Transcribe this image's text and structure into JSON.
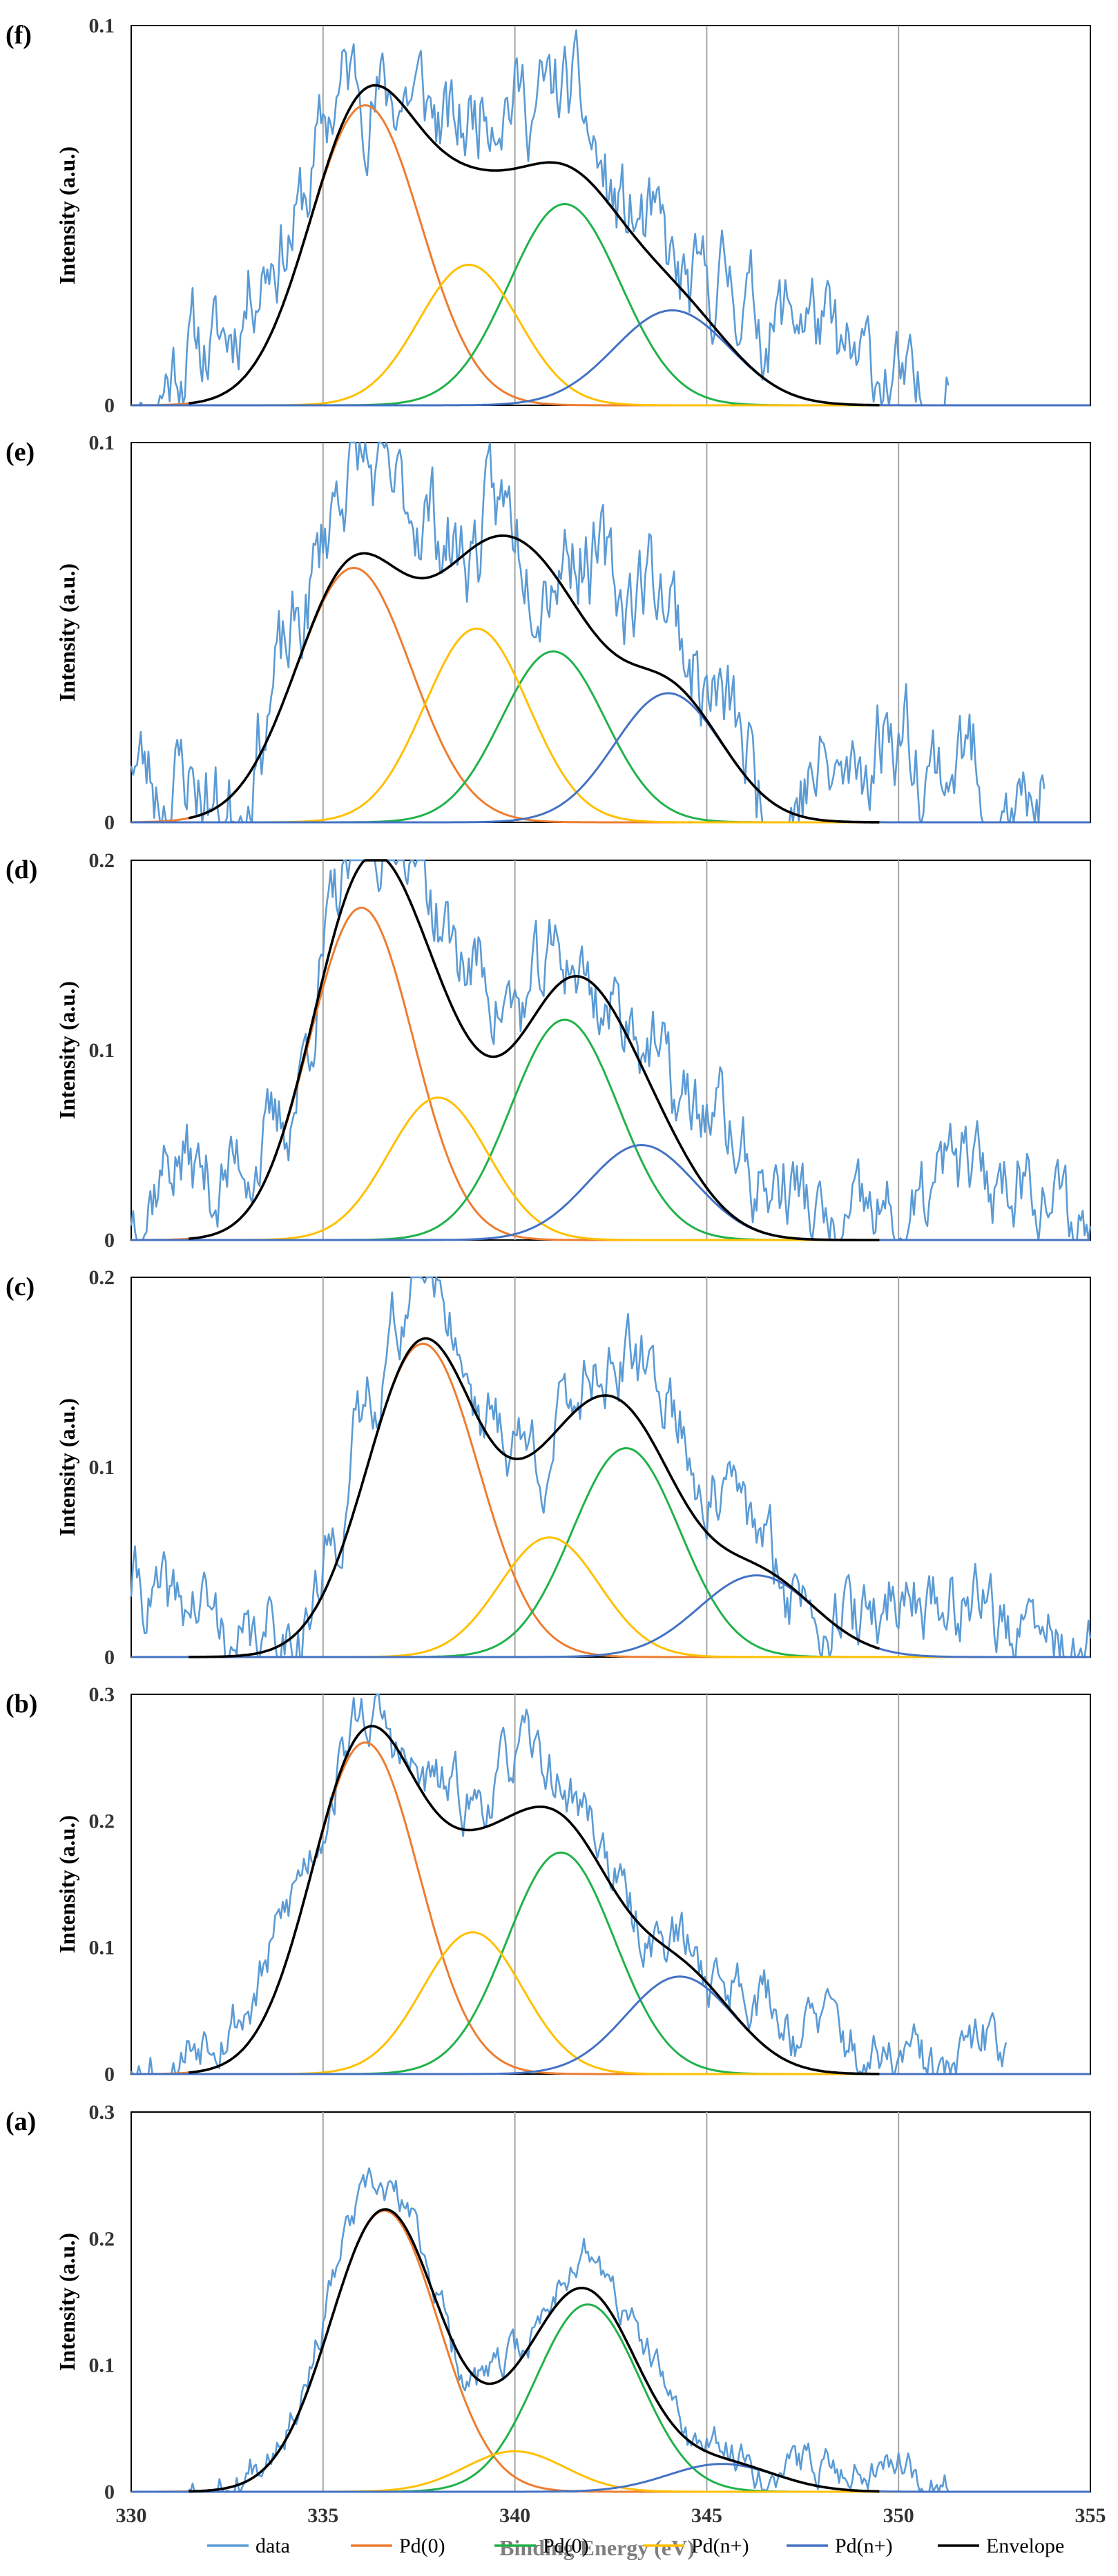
{
  "chart_data": {
    "type": "line",
    "xlabel": "Binding Energy (eV)",
    "xlim": [
      330,
      355
    ],
    "xticks": [
      "330",
      "335",
      "340",
      "345",
      "350",
      "355"
    ],
    "gridlines_x": [
      335,
      340,
      345,
      350
    ],
    "legend": [
      {
        "name": "data",
        "color": "#5b9bd5"
      },
      {
        "name": "Pd(0)",
        "color": "#ed7d31"
      },
      {
        "name": "Pd(0)",
        "color": "#21b24b"
      },
      {
        "name": "Pd(n+)",
        "color": "#ffc000"
      },
      {
        "name": "Pd(n+)",
        "color": "#4472c4"
      },
      {
        "name": "Envelope",
        "color": "#000000"
      }
    ],
    "panels": [
      {
        "label": "(f)",
        "ylabel": "Intensity (a.u.)",
        "ylim": [
          0,
          0.1
        ],
        "yticks": [
          "0",
          "0.1"
        ],
        "data_range": [
          330,
          351.3
        ],
        "data_seed": 11,
        "noise": 0.012,
        "peaks": [
          {
            "name": "Pd(0)",
            "color": "#ed7d31",
            "center": 336.1,
            "height": 0.079,
            "sigma": 1.45
          },
          {
            "name": "Pd(0)",
            "color": "#21b24b",
            "center": 341.3,
            "height": 0.053,
            "sigma": 1.45
          },
          {
            "name": "Pd(n+)",
            "color": "#ffc000",
            "center": 338.8,
            "height": 0.037,
            "sigma": 1.3
          },
          {
            "name": "Pd(n+)",
            "color": "#4472c4",
            "center": 344.1,
            "height": 0.025,
            "sigma": 1.5
          }
        ]
      },
      {
        "label": "(e)",
        "ylabel": "Intensity (a.u.)",
        "ylim": [
          0,
          0.1
        ],
        "yticks": [
          "0",
          "0.1"
        ],
        "data_range": [
          330,
          353.8
        ],
        "data_seed": 23,
        "noise": 0.013,
        "peaks": [
          {
            "name": "Pd(0)",
            "color": "#ed7d31",
            "center": 335.8,
            "height": 0.067,
            "sigma": 1.5
          },
          {
            "name": "Pd(0)",
            "color": "#21b24b",
            "center": 341.0,
            "height": 0.045,
            "sigma": 1.35
          },
          {
            "name": "Pd(n+)",
            "color": "#ffc000",
            "center": 339.0,
            "height": 0.051,
            "sigma": 1.35
          },
          {
            "name": "Pd(n+)",
            "color": "#4472c4",
            "center": 344.0,
            "height": 0.034,
            "sigma": 1.4
          }
        ]
      },
      {
        "label": "(d)",
        "ylabel": "Intensity (a.u.)",
        "ylim": [
          0,
          0.2
        ],
        "yticks": [
          "0",
          "0.1",
          "0.2"
        ],
        "data_range": [
          330,
          355
        ],
        "data_seed": 37,
        "noise": 0.022,
        "peaks": [
          {
            "name": "Pd(0)",
            "color": "#ed7d31",
            "center": 336.0,
            "height": 0.175,
            "sigma": 1.35
          },
          {
            "name": "Pd(0)",
            "color": "#21b24b",
            "center": 341.3,
            "height": 0.116,
            "sigma": 1.4
          },
          {
            "name": "Pd(n+)",
            "color": "#ffc000",
            "center": 338.0,
            "height": 0.075,
            "sigma": 1.3
          },
          {
            "name": "Pd(n+)",
            "color": "#4472c4",
            "center": 343.3,
            "height": 0.05,
            "sigma": 1.4
          }
        ]
      },
      {
        "label": "(c)",
        "ylabel": "Intensity (a.u.)",
        "ylim": [
          0,
          0.2
        ],
        "yticks": [
          "0",
          "0.1",
          "0.2"
        ],
        "data_range": [
          330,
          355
        ],
        "data_seed": 41,
        "noise": 0.02,
        "peaks": [
          {
            "name": "Pd(0)",
            "color": "#ed7d31",
            "center": 337.6,
            "height": 0.165,
            "sigma": 1.45
          },
          {
            "name": "Pd(0)",
            "color": "#21b24b",
            "center": 342.9,
            "height": 0.11,
            "sigma": 1.4
          },
          {
            "name": "Pd(n+)",
            "color": "#ffc000",
            "center": 340.9,
            "height": 0.063,
            "sigma": 1.3
          },
          {
            "name": "Pd(n+)",
            "color": "#4472c4",
            "center": 346.3,
            "height": 0.043,
            "sigma": 1.5
          }
        ]
      },
      {
        "label": "(b)",
        "ylabel": "Intensity (a.u.)",
        "ylim": [
          0,
          0.3
        ],
        "yticks": [
          "0",
          "0.1",
          "0.2",
          "0.3"
        ],
        "data_range": [
          330,
          352.8
        ],
        "data_seed": 53,
        "noise": 0.022,
        "peaks": [
          {
            "name": "Pd(0)",
            "color": "#ed7d31",
            "center": 336.1,
            "height": 0.262,
            "sigma": 1.4
          },
          {
            "name": "Pd(0)",
            "color": "#21b24b",
            "center": 341.2,
            "height": 0.175,
            "sigma": 1.4
          },
          {
            "name": "Pd(n+)",
            "color": "#ffc000",
            "center": 338.9,
            "height": 0.112,
            "sigma": 1.3
          },
          {
            "name": "Pd(n+)",
            "color": "#4472c4",
            "center": 344.3,
            "height": 0.077,
            "sigma": 1.4
          }
        ]
      },
      {
        "label": "(a)",
        "ylabel": "Intensity (a.u.)",
        "ylim": [
          0,
          0.3
        ],
        "yticks": [
          "0",
          "0.1",
          "0.2",
          "0.3"
        ],
        "data_range": [
          331.5,
          351.3
        ],
        "data_seed": 67,
        "noise": 0.014,
        "peaks": [
          {
            "name": "Pd(0)",
            "color": "#ed7d31",
            "center": 336.6,
            "height": 0.222,
            "sigma": 1.4
          },
          {
            "name": "Pd(0)",
            "color": "#21b24b",
            "center": 341.9,
            "height": 0.148,
            "sigma": 1.35
          },
          {
            "name": "Pd(n+)",
            "color": "#ffc000",
            "center": 340.0,
            "height": 0.032,
            "sigma": 1.3
          },
          {
            "name": "Pd(n+)",
            "color": "#4472c4",
            "center": 345.4,
            "height": 0.022,
            "sigma": 1.4
          }
        ]
      }
    ]
  }
}
